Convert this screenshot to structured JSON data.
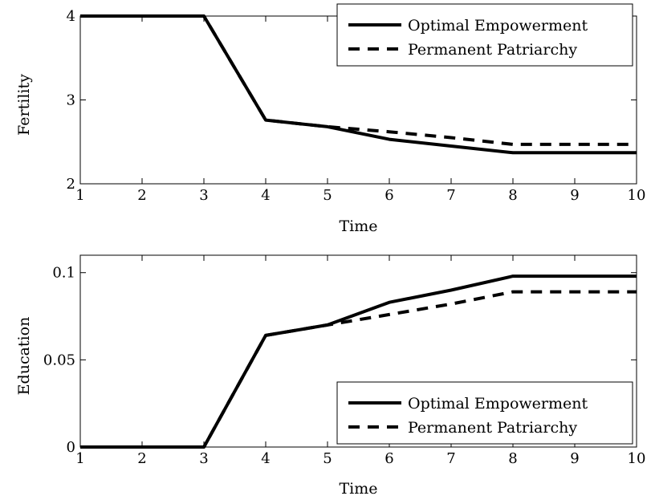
{
  "chart_data": [
    {
      "type": "line",
      "xlabel": "Time",
      "ylabel": "Fertility",
      "xlim": [
        1,
        10
      ],
      "ylim": [
        2,
        4
      ],
      "xticks": [
        1,
        2,
        3,
        4,
        5,
        6,
        7,
        8,
        9,
        10
      ],
      "yticks": [
        2,
        3,
        4
      ],
      "ytick_labels": [
        "2",
        "3",
        "4"
      ],
      "legend_position": "top-right",
      "x": [
        1,
        2,
        3,
        4,
        5,
        6,
        7,
        8,
        9,
        10
      ],
      "series": [
        {
          "name": "Optimal Empowerment",
          "style": "solid",
          "values": [
            4.0,
            4.0,
            4.0,
            2.76,
            2.68,
            2.53,
            2.45,
            2.37,
            2.37,
            2.37
          ]
        },
        {
          "name": "Permanent Patriarchy",
          "style": "dashed",
          "values": [
            4.0,
            4.0,
            4.0,
            2.76,
            2.68,
            2.62,
            2.55,
            2.47,
            2.47,
            2.47
          ]
        }
      ],
      "grid": false
    },
    {
      "type": "line",
      "xlabel": "Time",
      "ylabel": "Education",
      "xlim": [
        1,
        10
      ],
      "ylim": [
        0,
        0.11
      ],
      "xticks": [
        1,
        2,
        3,
        4,
        5,
        6,
        7,
        8,
        9,
        10
      ],
      "yticks": [
        0,
        0.05,
        0.1
      ],
      "ytick_labels": [
        "0",
        "0.05",
        "0.1"
      ],
      "legend_position": "bottom-right",
      "x": [
        1,
        2,
        3,
        4,
        5,
        6,
        7,
        8,
        9,
        10
      ],
      "series": [
        {
          "name": "Optimal Empowerment",
          "style": "solid",
          "values": [
            0,
            0,
            0,
            0.064,
            0.07,
            0.083,
            0.09,
            0.098,
            0.098,
            0.098
          ]
        },
        {
          "name": "Permanent Patriarchy",
          "style": "dashed",
          "values": [
            0,
            0,
            0,
            0.064,
            0.07,
            0.076,
            0.082,
            0.089,
            0.089,
            0.089
          ]
        }
      ],
      "grid": false
    }
  ]
}
